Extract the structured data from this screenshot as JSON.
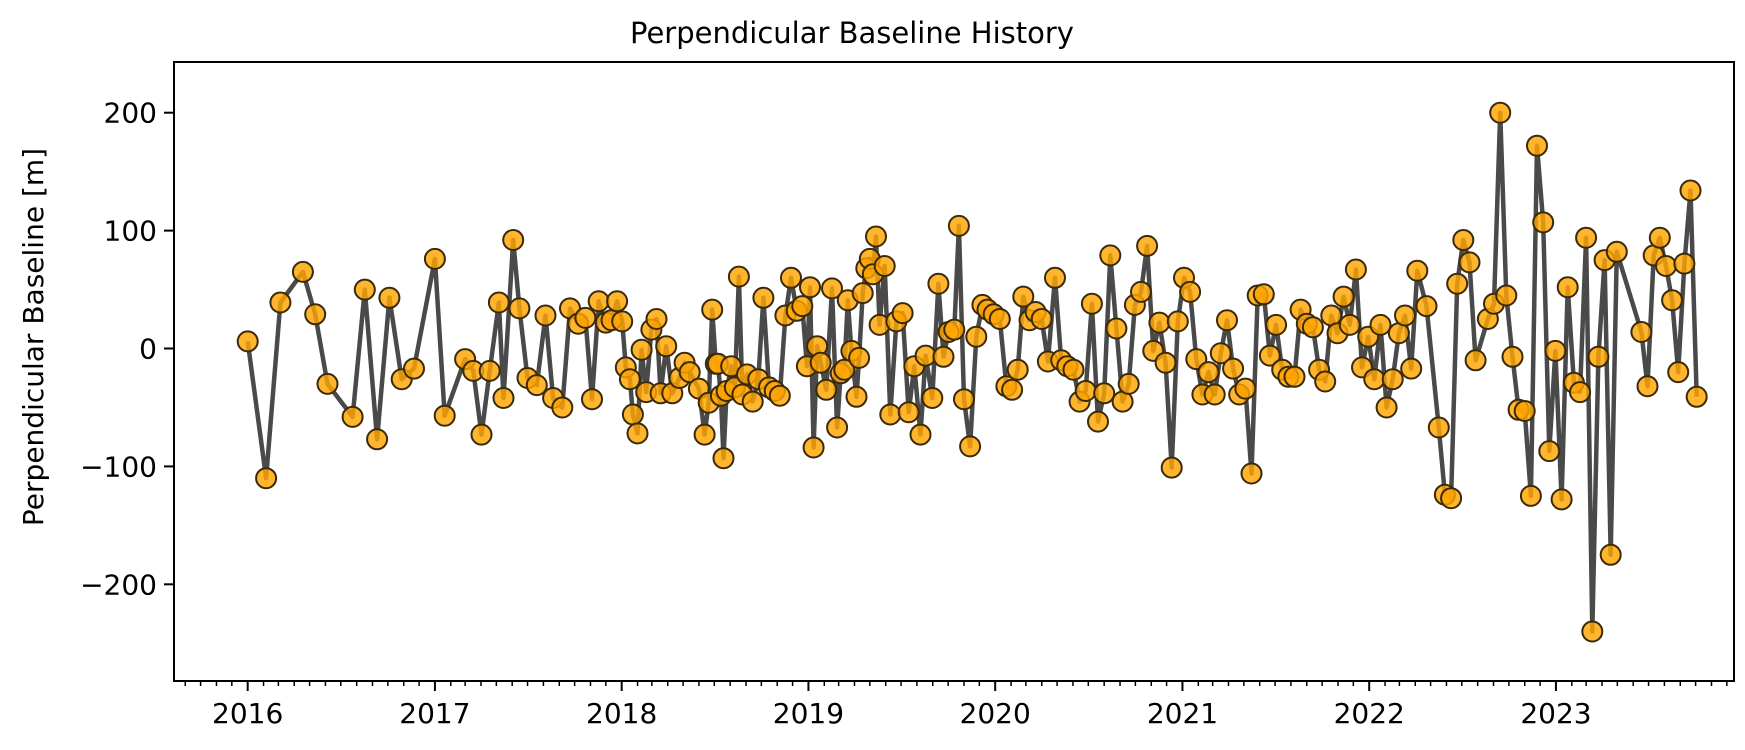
{
  "chart_data": {
    "type": "line",
    "title": "Perpendicular Baseline History",
    "xlabel": "",
    "ylabel": "Perpendicular Baseline [m]",
    "xlim": [
      "2015-08-10",
      "2023-12-15"
    ],
    "ylim": [
      -282,
      243
    ],
    "x_ticks": [
      "2016",
      "2017",
      "2018",
      "2019",
      "2020",
      "2021",
      "2022",
      "2023"
    ],
    "y_ticks": [
      -200,
      -100,
      0,
      100,
      200
    ],
    "y_tick_labels": [
      "−200",
      "−100",
      "0",
      "100",
      "200"
    ],
    "minor_x_ticks": "monthly",
    "grid": false,
    "legend": "none",
    "colors": {
      "line": "#404040",
      "marker_fill": "#FFA500",
      "marker_edge": "#3a2a0a"
    },
    "marker": "circle",
    "series": [
      {
        "x": [
          "2016-01-01",
          "2016-02-06",
          "2016-03-05",
          "2016-04-18",
          "2016-05-12",
          "2016-06-05",
          "2016-07-24",
          "2016-08-17",
          "2016-09-10",
          "2016-10-04",
          "2016-10-28",
          "2016-11-21",
          "2017-01-01",
          "2017-01-20",
          "2017-03-01",
          "2017-03-17",
          "2017-04-02",
          "2017-04-18",
          "2017-05-06",
          "2017-05-15",
          "2017-06-03",
          "2017-06-15",
          "2017-07-01",
          "2017-07-19",
          "2017-08-05",
          "2017-08-20",
          "2017-09-07",
          "2017-09-22",
          "2017-10-08",
          "2017-10-22",
          "2017-11-04",
          "2017-11-17",
          "2017-12-01",
          "2017-12-12",
          "2017-12-23",
          "2018-01-02",
          "2018-01-09",
          "2018-01-17",
          "2018-01-23",
          "2018-02-01",
          "2018-02-09",
          "2018-02-18",
          "2018-02-28",
          "2018-03-10",
          "2018-03-18",
          "2018-03-29",
          "2018-04-10",
          "2018-04-24",
          "2018-05-04",
          "2018-05-14",
          "2018-06-01",
          "2018-06-12",
          "2018-06-20",
          "2018-06-27",
          "2018-07-04",
          "2018-07-08",
          "2018-07-14",
          "2018-07-19",
          "2018-07-25",
          "2018-08-03",
          "2018-08-10",
          "2018-08-18",
          "2018-08-25",
          "2018-09-03",
          "2018-09-14",
          "2018-09-25",
          "2018-10-05",
          "2018-10-16",
          "2018-10-27",
          "2018-11-06",
          "2018-11-17",
          "2018-11-28",
          "2018-12-09",
          "2018-12-20",
          "2018-12-29",
          "2019-01-04",
          "2019-01-11",
          "2019-01-18",
          "2019-01-25",
          "2019-02-05",
          "2019-02-16",
          "2019-02-26",
          "2019-03-05",
          "2019-03-12",
          "2019-03-19",
          "2019-03-26",
          "2019-04-05",
          "2019-04-10",
          "2019-04-17",
          "2019-04-24",
          "2019-05-01",
          "2019-05-07",
          "2019-05-13",
          "2019-05-20",
          "2019-05-30",
          "2019-06-10",
          "2019-06-22",
          "2019-07-04",
          "2019-07-16",
          "2019-07-27",
          "2019-08-08",
          "2019-08-18",
          "2019-08-31",
          "2019-09-12",
          "2019-09-22",
          "2019-10-02",
          "2019-10-13",
          "2019-10-22",
          "2019-11-01",
          "2019-11-13",
          "2019-11-25",
          "2019-12-07",
          "2019-12-17",
          "2019-12-29",
          "2020-01-10",
          "2020-01-23",
          "2020-02-03",
          "2020-02-14",
          "2020-02-25",
          "2020-03-08",
          "2020-03-20",
          "2020-04-01",
          "2020-04-13",
          "2020-04-27",
          "2020-05-09",
          "2020-05-21",
          "2020-06-02",
          "2020-06-14",
          "2020-06-26",
          "2020-07-08",
          "2020-07-20",
          "2020-08-01",
          "2020-08-13",
          "2020-08-25",
          "2020-09-06",
          "2020-09-18",
          "2020-09-30",
          "2020-10-12",
          "2020-10-24",
          "2020-11-05",
          "2020-11-17",
          "2020-11-29",
          "2020-12-11",
          "2020-12-23",
          "2021-01-04",
          "2021-01-16",
          "2021-01-28",
          "2021-02-09",
          "2021-02-21",
          "2021-03-05",
          "2021-03-17",
          "2021-03-29",
          "2021-04-10",
          "2021-04-22",
          "2021-05-04",
          "2021-05-16",
          "2021-05-28",
          "2021-06-09",
          "2021-06-21",
          "2021-07-03",
          "2021-07-15",
          "2021-07-27",
          "2021-08-08",
          "2021-08-20",
          "2021-09-01",
          "2021-09-13",
          "2021-09-25",
          "2021-10-07",
          "2021-10-19",
          "2021-10-31",
          "2021-11-12",
          "2021-11-24",
          "2021-12-06",
          "2021-12-18",
          "2021-12-30",
          "2022-01-11",
          "2022-01-23",
          "2022-02-04",
          "2022-02-16",
          "2022-02-28",
          "2022-03-12",
          "2022-03-24",
          "2022-04-05",
          "2022-04-23",
          "2022-05-17",
          "2022-05-29",
          "2022-06-10",
          "2022-06-22",
          "2022-07-04",
          "2022-07-16",
          "2022-07-28",
          "2022-08-21",
          "2022-09-02",
          "2022-09-14",
          "2022-09-26",
          "2022-10-08",
          "2022-10-20",
          "2022-11-01",
          "2022-11-13",
          "2022-11-25",
          "2022-12-07",
          "2022-12-19",
          "2022-12-31",
          "2023-01-12",
          "2023-01-24",
          "2023-02-05",
          "2023-02-17",
          "2023-03-01",
          "2023-03-13",
          "2023-03-25",
          "2023-04-06",
          "2023-04-18",
          "2023-04-30",
          "2023-06-17",
          "2023-06-29",
          "2023-07-11",
          "2023-07-23",
          "2023-08-04",
          "2023-08-16",
          "2023-08-28",
          "2023-09-09",
          "2023-09-21",
          "2023-10-03"
        ],
        "y": [
          6,
          -110,
          39,
          65,
          29,
          -30,
          -58,
          50,
          -77,
          43,
          -26,
          -17,
          76,
          -57,
          -9,
          -19,
          -73,
          -19,
          39,
          -42,
          92,
          34,
          -25,
          -31,
          28,
          -42,
          -50,
          34,
          21,
          26,
          -43,
          40,
          22,
          24,
          40,
          23,
          -16,
          -26,
          -56,
          -72,
          -1,
          -37,
          16,
          25,
          -38,
          2,
          -38,
          -25,
          -12,
          -20,
          -34,
          -73,
          -46,
          33,
          -13,
          -13,
          -40,
          -93,
          -36,
          -15,
          -33,
          61,
          -39,
          -22,
          -45,
          -26,
          43,
          -33,
          -36,
          -40,
          28,
          60,
          32,
          36,
          -15,
          52,
          -84,
          2,
          -12,
          -35,
          51,
          -67,
          -21,
          -18,
          41,
          -2,
          -41,
          -8,
          47,
          68,
          76,
          63,
          95,
          20,
          70,
          -56,
          23,
          30,
          -54,
          -15,
          -73,
          -6,
          -42,
          55,
          -7,
          14,
          16,
          104,
          -43,
          -83,
          10,
          37,
          33,
          29,
          25,
          -32,
          -35,
          -18,
          44,
          24,
          31,
          25,
          -11,
          60,
          -10,
          -15,
          -18,
          -45,
          -36,
          38,
          -62,
          -38,
          79,
          17,
          -45,
          -30,
          37,
          48,
          87,
          -2,
          22,
          -12,
          -101,
          23,
          60,
          48,
          -9,
          -39,
          -20,
          -39,
          -4,
          24,
          -17,
          -39,
          -34,
          -106,
          45,
          46,
          -6,
          20,
          -18,
          -24,
          -24,
          33,
          21,
          18,
          -18,
          -28,
          28,
          13,
          44,
          20,
          67,
          -16,
          10,
          -26,
          20,
          -50,
          -26,
          13,
          28,
          -17,
          66,
          36,
          -67,
          -124,
          -127,
          55,
          92,
          73,
          -10,
          25,
          38,
          200,
          45,
          -7,
          -52,
          -53,
          -125,
          172,
          107,
          -87,
          -2,
          -128,
          52,
          -29,
          -37,
          94,
          -240,
          -7,
          75,
          -175,
          82,
          14,
          -32,
          79,
          94,
          70,
          41,
          -20,
          72,
          134,
          -41
        ]
      }
    ]
  }
}
